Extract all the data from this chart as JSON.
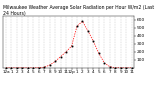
{
  "title": "Milwaukee Weather Average Solar Radiation per Hour W/m2 (Last 24 Hours)",
  "hours": [
    0,
    1,
    2,
    3,
    4,
    5,
    6,
    7,
    8,
    9,
    10,
    11,
    12,
    13,
    14,
    15,
    16,
    17,
    18,
    19,
    20,
    21,
    22,
    23
  ],
  "values": [
    0,
    0,
    0,
    0,
    0,
    0,
    2,
    8,
    35,
    80,
    140,
    200,
    270,
    520,
    580,
    460,
    330,
    180,
    60,
    15,
    2,
    0,
    0,
    0
  ],
  "x_labels": [
    "12a",
    "1",
    "2",
    "3",
    "4",
    "5",
    "6",
    "7",
    "8",
    "9",
    "10",
    "11",
    "12p",
    "1",
    "2",
    "3",
    "4",
    "5",
    "6",
    "7",
    "8",
    "9",
    "10",
    "11"
  ],
  "line_color": "#ff0000",
  "marker_color": "#000000",
  "bg_color": "#ffffff",
  "grid_color": "#aaaaaa",
  "ylim": [
    0,
    650
  ],
  "yticks": [
    100,
    200,
    300,
    400,
    500,
    600
  ],
  "ylabel_fontsize": 3.2,
  "xlabel_fontsize": 3.0,
  "title_fontsize": 3.3
}
